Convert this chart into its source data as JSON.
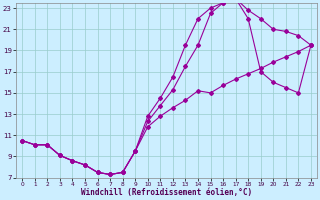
{
  "xlabel": "Windchill (Refroidissement éolien,°C)",
  "bg_color": "#cceeff",
  "grid_color": "#99cccc",
  "line_color": "#990099",
  "xlim": [
    -0.5,
    23.5
  ],
  "ylim": [
    7,
    23.5
  ],
  "xticks": [
    0,
    1,
    2,
    3,
    4,
    5,
    6,
    7,
    8,
    9,
    10,
    11,
    12,
    13,
    14,
    15,
    16,
    17,
    18,
    19,
    20,
    21,
    22,
    23
  ],
  "yticks": [
    7,
    9,
    11,
    13,
    15,
    17,
    19,
    21,
    23
  ],
  "line1_x": [
    0,
    1,
    2,
    3,
    4,
    5,
    6,
    7,
    8,
    9,
    10,
    11,
    12,
    13,
    14,
    15,
    16,
    17,
    18,
    19,
    20,
    21,
    22,
    23
  ],
  "line1_y": [
    10.5,
    10.1,
    10.1,
    9.1,
    8.6,
    8.2,
    7.5,
    7.3,
    7.5,
    9.5,
    11.8,
    12.8,
    13.6,
    14.3,
    15.2,
    15.0,
    15.7,
    16.3,
    16.8,
    17.3,
    17.9,
    18.4,
    18.9,
    19.5
  ],
  "line2_x": [
    0,
    1,
    2,
    3,
    4,
    5,
    6,
    7,
    8,
    9,
    10,
    11,
    12,
    13,
    14,
    15,
    16,
    17,
    18,
    19,
    20,
    21,
    22,
    23
  ],
  "line2_y": [
    10.5,
    10.1,
    10.1,
    9.1,
    8.6,
    8.2,
    7.5,
    7.3,
    7.5,
    9.5,
    12.8,
    14.5,
    16.5,
    19.5,
    22.0,
    23.0,
    23.5,
    23.9,
    22.8,
    22.0,
    21.0,
    20.8,
    20.4,
    19.5
  ],
  "line3_x": [
    0,
    1,
    2,
    3,
    4,
    5,
    6,
    7,
    8,
    9,
    10,
    11,
    12,
    13,
    14,
    15,
    16,
    17,
    18,
    19,
    20,
    21,
    22,
    23
  ],
  "line3_y": [
    10.5,
    10.1,
    10.1,
    9.1,
    8.6,
    8.2,
    7.5,
    7.3,
    7.5,
    9.5,
    12.3,
    13.8,
    15.3,
    17.5,
    19.5,
    22.5,
    23.5,
    23.9,
    22.0,
    17.0,
    16.0,
    15.5,
    15.0,
    19.5
  ]
}
